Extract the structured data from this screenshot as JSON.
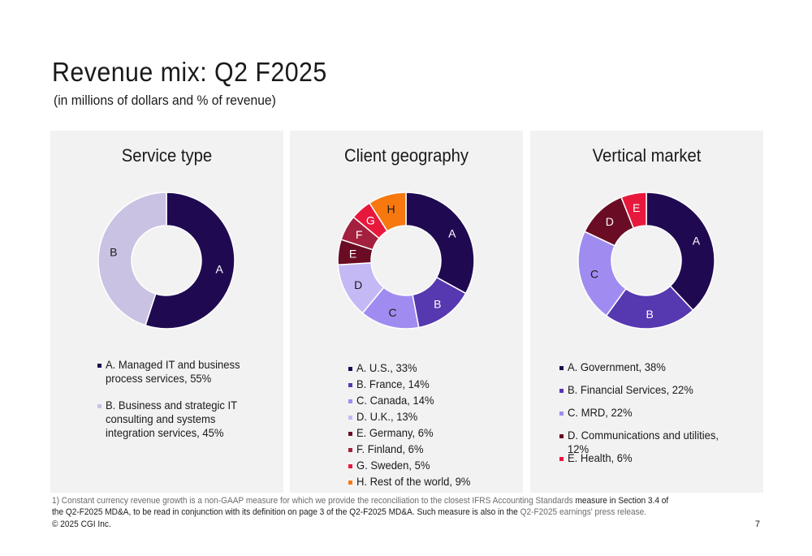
{
  "title": "Revenue mix: Q2 F2025",
  "subtitle": "(in millions of dollars and % of revenue)",
  "chart_data": [
    {
      "type": "pie",
      "title": "Service type",
      "categories": [
        "A",
        "B"
      ],
      "values": [
        55,
        45
      ],
      "colors": [
        "#1f0a52",
        "#c9c2e3"
      ],
      "label_colors": [
        "#ffffff",
        "#1a1a1a"
      ],
      "legend": [
        "A. Managed IT and business process services, 55%",
        "B. Business and strategic IT consulting and systems integration services, 45%"
      ]
    },
    {
      "type": "pie",
      "title": "Client geography",
      "categories": [
        "A",
        "B",
        "C",
        "D",
        "E",
        "F",
        "G",
        "H"
      ],
      "values": [
        33,
        14,
        14,
        13,
        6,
        6,
        5,
        9
      ],
      "colors": [
        "#1f0a52",
        "#5638b0",
        "#a08cf0",
        "#c5b9f5",
        "#6a0d24",
        "#a3203e",
        "#e8183d",
        "#f6780f"
      ],
      "label_colors": [
        "#ffffff",
        "#ffffff",
        "#1a1a1a",
        "#1a1a1a",
        "#ffffff",
        "#ffffff",
        "#ffffff",
        "#1a1a1a"
      ],
      "legend": [
        "A. U.S., 33%",
        "B. France, 14%",
        "C. Canada, 14%",
        "D. U.K., 13%",
        "E. Germany, 6%",
        "F. Finland, 6%",
        "G. Sweden, 5%",
        "H. Rest of the world, 9%"
      ]
    },
    {
      "type": "pie",
      "title": "Vertical market",
      "categories": [
        "A",
        "B",
        "C",
        "D",
        "E"
      ],
      "values": [
        38,
        22,
        22,
        12,
        6
      ],
      "colors": [
        "#1f0a52",
        "#5638b0",
        "#a08cf0",
        "#6a0d24",
        "#e8183d"
      ],
      "label_colors": [
        "#ffffff",
        "#ffffff",
        "#1a1a1a",
        "#ffffff",
        "#ffffff"
      ],
      "legend": [
        "A. Government, 38%",
        "B. Financial Services, 22%",
        "C. MRD, 22%",
        "D. Communications and utilities, 12%",
        "E. Health, 6%"
      ]
    }
  ],
  "footnote": {
    "part1": "1) Constant currency revenue growth is a non-GAAP measure for which we provide the reconciliation to the closest IFRS Accounting Standards",
    "part2": " measure in Section 3.4 of the Q2-F2025 MD&A, to be read in conjunction with its definition on page 3 of the Q2-F2025 MD&A. Such measure is also in the ",
    "part3": "Q2-F2025 earnings' press release."
  },
  "copyright": "© 2025 CGI Inc.",
  "page_number": "7"
}
